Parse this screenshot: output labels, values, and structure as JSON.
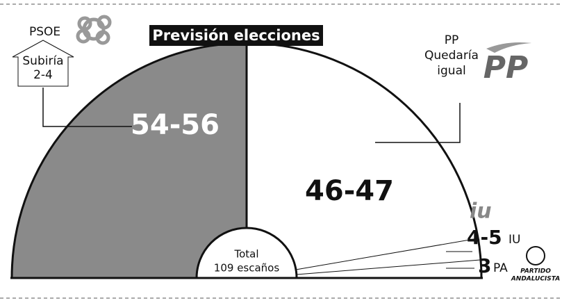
{
  "title": "Previsión elecciones",
  "psoe": {
    "name": "PSOE",
    "note": [
      "Subiría",
      "2-4"
    ],
    "seats": "54-56"
  },
  "pp": {
    "name": "PP",
    "note": [
      "Quedaría",
      "igual"
    ],
    "seats": "46-47"
  },
  "iu": {
    "name": "IU",
    "seats": "4-5"
  },
  "pa": {
    "name": "PA",
    "seats": "3",
    "logo": [
      "PARTIDO",
      "ANDALUCISTA"
    ]
  },
  "total": [
    "Total",
    "109 escaños"
  ]
}
